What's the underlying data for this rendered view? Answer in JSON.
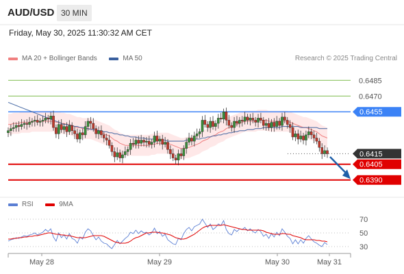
{
  "header": {
    "symbol": "AUD/USD",
    "timeframe": "30 MIN",
    "datetime": "Friday, May 30, 2025 11:30:32 AM CET"
  },
  "legend": {
    "ma20_label": "MA 20 + Bollinger Bands",
    "ma50_label": "MA 50",
    "ma20_color": "#f08080",
    "ma50_color": "#3a5f9e",
    "credit": "Research © 2025 Trading Central"
  },
  "rsi_legend": {
    "rsi_label": "RSI",
    "ma9_label": "9MA",
    "rsi_color": "#5b7fd4",
    "ma9_color": "#e00000"
  },
  "chart_data": {
    "type": "candlestick",
    "ylim": [
      0.638,
      0.6495
    ],
    "current_price": 0.6415,
    "x_labels": [
      "May 28",
      "May 29",
      "May 30",
      "May 31"
    ],
    "levels": [
      {
        "value": 0.6485,
        "label": "0.6485",
        "kind": "resistance-target",
        "color": "#7dbb4a"
      },
      {
        "value": 0.647,
        "label": "0.6470",
        "kind": "resistance-target",
        "color": "#7dbb4a"
      },
      {
        "value": 0.6455,
        "label": "0.6455",
        "kind": "pivot",
        "color": "#3b82f6"
      },
      {
        "value": 0.6415,
        "label": "0.6415",
        "kind": "last-price",
        "color": "#333333"
      },
      {
        "value": 0.6405,
        "label": "0.6405",
        "kind": "support-target",
        "color": "#e00000"
      },
      {
        "value": 0.639,
        "label": "0.6390",
        "kind": "support-target",
        "color": "#e00000"
      }
    ],
    "closes": [
      0.6437,
      0.6439,
      0.644,
      0.6442,
      0.6441,
      0.6443,
      0.6444,
      0.6443,
      0.6445,
      0.6446,
      0.6447,
      0.6445,
      0.6446,
      0.6447,
      0.6449,
      0.6448,
      0.6451,
      0.644,
      0.6434,
      0.6443,
      0.6438,
      0.6441,
      0.6436,
      0.6442,
      0.6437,
      0.6434,
      0.6429,
      0.6435,
      0.6433,
      0.6441,
      0.6446,
      0.6444,
      0.6439,
      0.6434,
      0.6437,
      0.6433,
      0.643,
      0.6428,
      0.6423,
      0.6417,
      0.6412,
      0.6416,
      0.6411,
      0.6414,
      0.6417,
      0.6419,
      0.6425,
      0.6424,
      0.6428,
      0.6425,
      0.6428,
      0.6426,
      0.6427,
      0.6424,
      0.6426,
      0.6432,
      0.6427,
      0.6429,
      0.6424,
      0.6426,
      0.6419,
      0.6415,
      0.6411,
      0.6409,
      0.6415,
      0.6413,
      0.642,
      0.6426,
      0.643,
      0.6427,
      0.6432,
      0.6434,
      0.6436,
      0.6447,
      0.6443,
      0.644,
      0.6446,
      0.6441,
      0.6444,
      0.6449,
      0.6448,
      0.6455,
      0.6447,
      0.6442,
      0.644,
      0.6446,
      0.6444,
      0.6447,
      0.6446,
      0.645,
      0.6447,
      0.6449,
      0.6447,
      0.6445,
      0.6449,
      0.6447,
      0.6442,
      0.6444,
      0.644,
      0.6445,
      0.6441,
      0.6446,
      0.6442,
      0.645,
      0.6447,
      0.6443,
      0.644,
      0.6431,
      0.6434,
      0.6429,
      0.6432,
      0.6428,
      0.6433,
      0.6436,
      0.6433,
      0.643,
      0.6427,
      0.6421,
      0.6415,
      0.6418,
      0.6415
    ],
    "ma20": [
      0.6443,
      0.6443,
      0.6444,
      0.6444,
      0.6444,
      0.6445,
      0.6445,
      0.6445,
      0.6445,
      0.6446,
      0.6446,
      0.6446,
      0.6446,
      0.6446,
      0.6446,
      0.6446,
      0.6446,
      0.6446,
      0.6445,
      0.6445,
      0.6444,
      0.6444,
      0.6443,
      0.6443,
      0.6442,
      0.6441,
      0.644,
      0.644,
      0.6439,
      0.6439,
      0.6439,
      0.6439,
      0.6438,
      0.6437,
      0.6436,
      0.6435,
      0.6434,
      0.6433,
      0.6432,
      0.643,
      0.6428,
      0.6427,
      0.6425,
      0.6424,
      0.6423,
      0.6423,
      0.6423,
      0.6423,
      0.6423,
      0.6423,
      0.6423,
      0.6423,
      0.6423,
      0.6423,
      0.6424,
      0.6424,
      0.6425,
      0.6425,
      0.6425,
      0.6425,
      0.6425,
      0.6424,
      0.6423,
      0.6422,
      0.6421,
      0.642,
      0.642,
      0.6421,
      0.6421,
      0.6422,
      0.6423,
      0.6424,
      0.6425,
      0.6427,
      0.6428,
      0.6429,
      0.6431,
      0.6432,
      0.6433,
      0.6435,
      0.6436,
      0.6437,
      0.6439,
      0.644,
      0.6441,
      0.6442,
      0.6443,
      0.6444,
      0.6445,
      0.6446,
      0.6446,
      0.6446,
      0.6446,
      0.6446,
      0.6447,
      0.6447,
      0.6447,
      0.6447,
      0.6446,
      0.6446,
      0.6446,
      0.6446,
      0.6446,
      0.6446,
      0.6446,
      0.6446,
      0.6445,
      0.6444,
      0.6443,
      0.6442,
      0.6441,
      0.644,
      0.644,
      0.6439,
      0.6438,
      0.6437,
      0.6436,
      0.6434,
      0.6432,
      0.6431,
      0.643
    ],
    "ma50": [
      0.6464,
      0.6463,
      0.6462,
      0.6461,
      0.646,
      0.6459,
      0.6458,
      0.6457,
      0.6456,
      0.6455,
      0.6454,
      0.6453,
      0.6452,
      0.6451,
      0.645,
      0.6449,
      0.6448,
      0.6447,
      0.6446,
      0.6445,
      0.6444,
      0.6443,
      0.6443,
      0.6442,
      0.6442,
      0.6441,
      0.6441,
      0.644,
      0.644,
      0.6439,
      0.6439,
      0.6438,
      0.6438,
      0.6438,
      0.6437,
      0.6437,
      0.6436,
      0.6436,
      0.6435,
      0.6435,
      0.6434,
      0.6434,
      0.6433,
      0.6433,
      0.6432,
      0.6432,
      0.6431,
      0.6431,
      0.6431,
      0.643,
      0.643,
      0.643,
      0.6429,
      0.6429,
      0.6429,
      0.6429,
      0.6428,
      0.6428,
      0.6428,
      0.6428,
      0.6427,
      0.6427,
      0.6427,
      0.6427,
      0.6427,
      0.6427,
      0.6427,
      0.6428,
      0.6428,
      0.6428,
      0.6429,
      0.6429,
      0.6429,
      0.643,
      0.643,
      0.6431,
      0.6431,
      0.6432,
      0.6432,
      0.6433,
      0.6433,
      0.6434,
      0.6434,
      0.6435,
      0.6435,
      0.6436,
      0.6436,
      0.6437,
      0.6437,
      0.6437,
      0.6438,
      0.6438,
      0.6438,
      0.6439,
      0.6439,
      0.6439,
      0.644,
      0.644,
      0.644,
      0.644,
      0.644,
      0.644,
      0.644,
      0.6441,
      0.6441,
      0.6441,
      0.6441,
      0.6441,
      0.6441,
      0.6441,
      0.644,
      0.644,
      0.644,
      0.644,
      0.644,
      0.644,
      0.644,
      0.6439,
      0.6439,
      0.6439,
      0.6439
    ],
    "rsi": {
      "ylim": [
        20,
        80
      ],
      "levels": [
        {
          "value": 70,
          "label": "70"
        },
        {
          "value": 50,
          "label": "50"
        },
        {
          "value": 30,
          "label": "30"
        }
      ],
      "rsi": [
        38,
        40,
        41,
        43,
        42,
        44,
        46,
        45,
        47,
        48,
        50,
        47,
        49,
        51,
        55,
        52,
        56,
        44,
        38,
        50,
        43,
        47,
        41,
        49,
        42,
        40,
        35,
        44,
        41,
        51,
        56,
        53,
        46,
        40,
        44,
        38,
        35,
        34,
        30,
        27,
        33,
        39,
        34,
        38,
        42,
        45,
        51,
        49,
        54,
        49,
        53,
        50,
        51,
        47,
        50,
        57,
        49,
        52,
        45,
        48,
        40,
        37,
        34,
        33,
        42,
        40,
        49,
        55,
        58,
        53,
        59,
        61,
        63,
        70,
        64,
        58,
        63,
        55,
        58,
        63,
        61,
        68,
        55,
        49,
        47,
        55,
        52,
        56,
        55,
        58,
        53,
        56,
        52,
        50,
        55,
        52,
        45,
        48,
        42,
        49,
        44,
        51,
        46,
        56,
        51,
        45,
        42,
        34,
        40,
        34,
        40,
        35,
        42,
        46,
        41,
        37,
        35,
        32,
        30,
        36,
        33
      ],
      "ma9": [
        41,
        41,
        42,
        42,
        43,
        43,
        44,
        44,
        45,
        45,
        46,
        46,
        47,
        48,
        49,
        50,
        50,
        49,
        48,
        48,
        47,
        47,
        46,
        46,
        45,
        44,
        43,
        43,
        43,
        43,
        44,
        45,
        46,
        46,
        46,
        46,
        45,
        43,
        41,
        39,
        37,
        36,
        35,
        35,
        35,
        36,
        38,
        41,
        43,
        44,
        46,
        48,
        50,
        50,
        51,
        51,
        51,
        50,
        50,
        49,
        48,
        47,
        45,
        43,
        42,
        41,
        41,
        42,
        44,
        46,
        48,
        51,
        54,
        57,
        59,
        60,
        61,
        61,
        61,
        61,
        61,
        62,
        61,
        60,
        59,
        58,
        57,
        56,
        55,
        55,
        54,
        54,
        54,
        54,
        54,
        54,
        53,
        51,
        50,
        49,
        48,
        48,
        48,
        49,
        49,
        48,
        48,
        46,
        45,
        44,
        43,
        41,
        40,
        40,
        40,
        40,
        39,
        39,
        38,
        38,
        37
      ]
    }
  }
}
